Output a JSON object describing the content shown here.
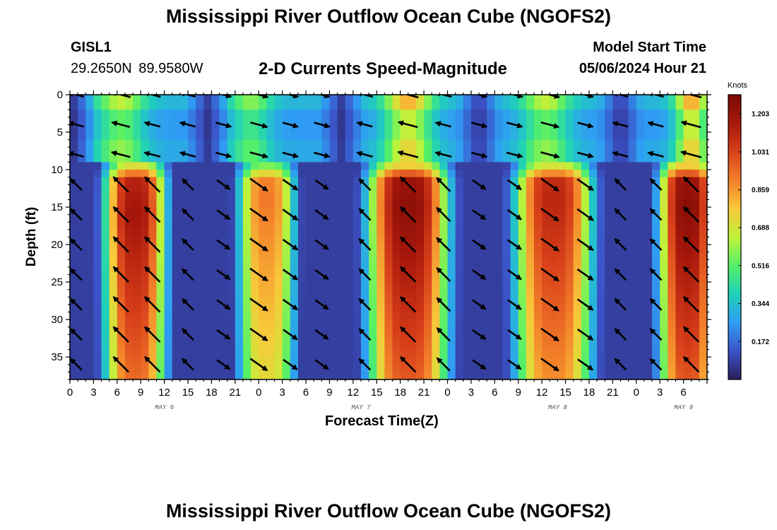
{
  "header": {
    "title": "Mississippi River Outflow Ocean Cube (NGOFS2)",
    "station_id": "GISL1",
    "coordinates": "29.2650N  89.9580W",
    "subtitle": "2-D Currents Speed-Magnitude",
    "model_start_label": "Model Start Time",
    "model_start_value": "05/06/2024 Hour 21"
  },
  "footer": {
    "title": "Mississippi River Outflow Ocean Cube (NGOFS2)"
  },
  "colors": {
    "background": "#ffffff",
    "arrow": "#000000",
    "colormap": [
      "#2a1e5c",
      "#3b53c8",
      "#2f9df4",
      "#1fd2b8",
      "#55f068",
      "#bff23a",
      "#f8c83a",
      "#f3802a",
      "#d8401a",
      "#a8180c",
      "#7a0a04"
    ]
  },
  "chart_data": {
    "type": "heatmap",
    "title": "2-D Currents Speed-Magnitude",
    "xlabel": "Forecast Time(Z)",
    "ylabel": "Depth (ft)",
    "x_range_hours": [
      0,
      81
    ],
    "x_tick_labels": [
      "0",
      "3",
      "6",
      "9",
      "12",
      "15",
      "18",
      "21",
      "0",
      "3",
      "6",
      "9",
      "12",
      "15",
      "18",
      "21",
      "0",
      "3",
      "6",
      "9",
      "12",
      "15",
      "18",
      "21",
      "0",
      "3",
      "6"
    ],
    "date_labels": [
      {
        "label": "MAY 6",
        "hour": 12
      },
      {
        "label": "MAY 7",
        "hour": 37
      },
      {
        "label": "MAY 8",
        "hour": 62
      },
      {
        "label": "MAY 9",
        "hour": 78
      }
    ],
    "y_range_ft": [
      0,
      38
    ],
    "y_ticks": [
      0,
      5,
      10,
      15,
      20,
      25,
      30,
      35
    ],
    "colorbar": {
      "unit": "Knots",
      "min": 0.0,
      "max": 1.29,
      "tick_labels": [
        "1.203",
        "1.031",
        "0.859",
        "0.688",
        "0.516",
        "0.344",
        "0.172"
      ],
      "tick_values": [
        1.203,
        1.031,
        0.859,
        0.688,
        0.516,
        0.344,
        0.172
      ]
    },
    "speed_model": {
      "surface_layer_max_depth_ft": 8,
      "upper_layer_max_depth_ft": 10,
      "deep_peaks": [
        {
          "center_hour": 8.3,
          "half_width_hours": 3.8,
          "peak_knots": 1.18,
          "core_depth_ft": 16
        },
        {
          "center_hour": 25.0,
          "half_width_hours": 3.5,
          "peak_knots": 0.92,
          "core_depth_ft": 14
        },
        {
          "center_hour": 43.0,
          "half_width_hours": 5.0,
          "peak_knots": 1.24,
          "core_depth_ft": 15
        },
        {
          "center_hour": 61.5,
          "half_width_hours": 4.8,
          "peak_knots": 1.12,
          "core_depth_ft": 14
        },
        {
          "center_hour": 78.5,
          "half_width_hours": 3.5,
          "peak_knots": 1.25,
          "core_depth_ft": 15
        }
      ],
      "surface_peaks": [
        {
          "center_hour": 6.5,
          "width_hours": 6,
          "peak_knots": 0.62
        },
        {
          "center_hour": 23.0,
          "width_hours": 5,
          "peak_knots": 0.55
        },
        {
          "center_hour": 43.0,
          "width_hours": 6,
          "peak_knots": 0.78
        },
        {
          "center_hour": 60.5,
          "width_hours": 6,
          "peak_knots": 0.62
        },
        {
          "center_hour": 79.0,
          "width_hours": 4,
          "peak_knots": 0.8
        }
      ],
      "minima_hours": [
        0.5,
        17.5,
        34.5,
        52.0,
        70.0
      ]
    },
    "vector_rows_ft": [
      0,
      4,
      8,
      12,
      16,
      20,
      24,
      28,
      32,
      36
    ],
    "vector_cols_hours": [
      0.8,
      6.5,
      10.5,
      15.0,
      19.5,
      24.0,
      28.0,
      32.0,
      37.5,
      43.0,
      47.5,
      52.0,
      56.5,
      61.0,
      65.5,
      70.0,
      74.5,
      79.0
    ],
    "vector_directions": [
      {
        "phase": "flood",
        "deep_angle_deg": 35,
        "surface_angle_deg": 15
      },
      {
        "phase": "ebb",
        "deep_angle_deg": 225,
        "surface_angle_deg": 195
      }
    ]
  }
}
